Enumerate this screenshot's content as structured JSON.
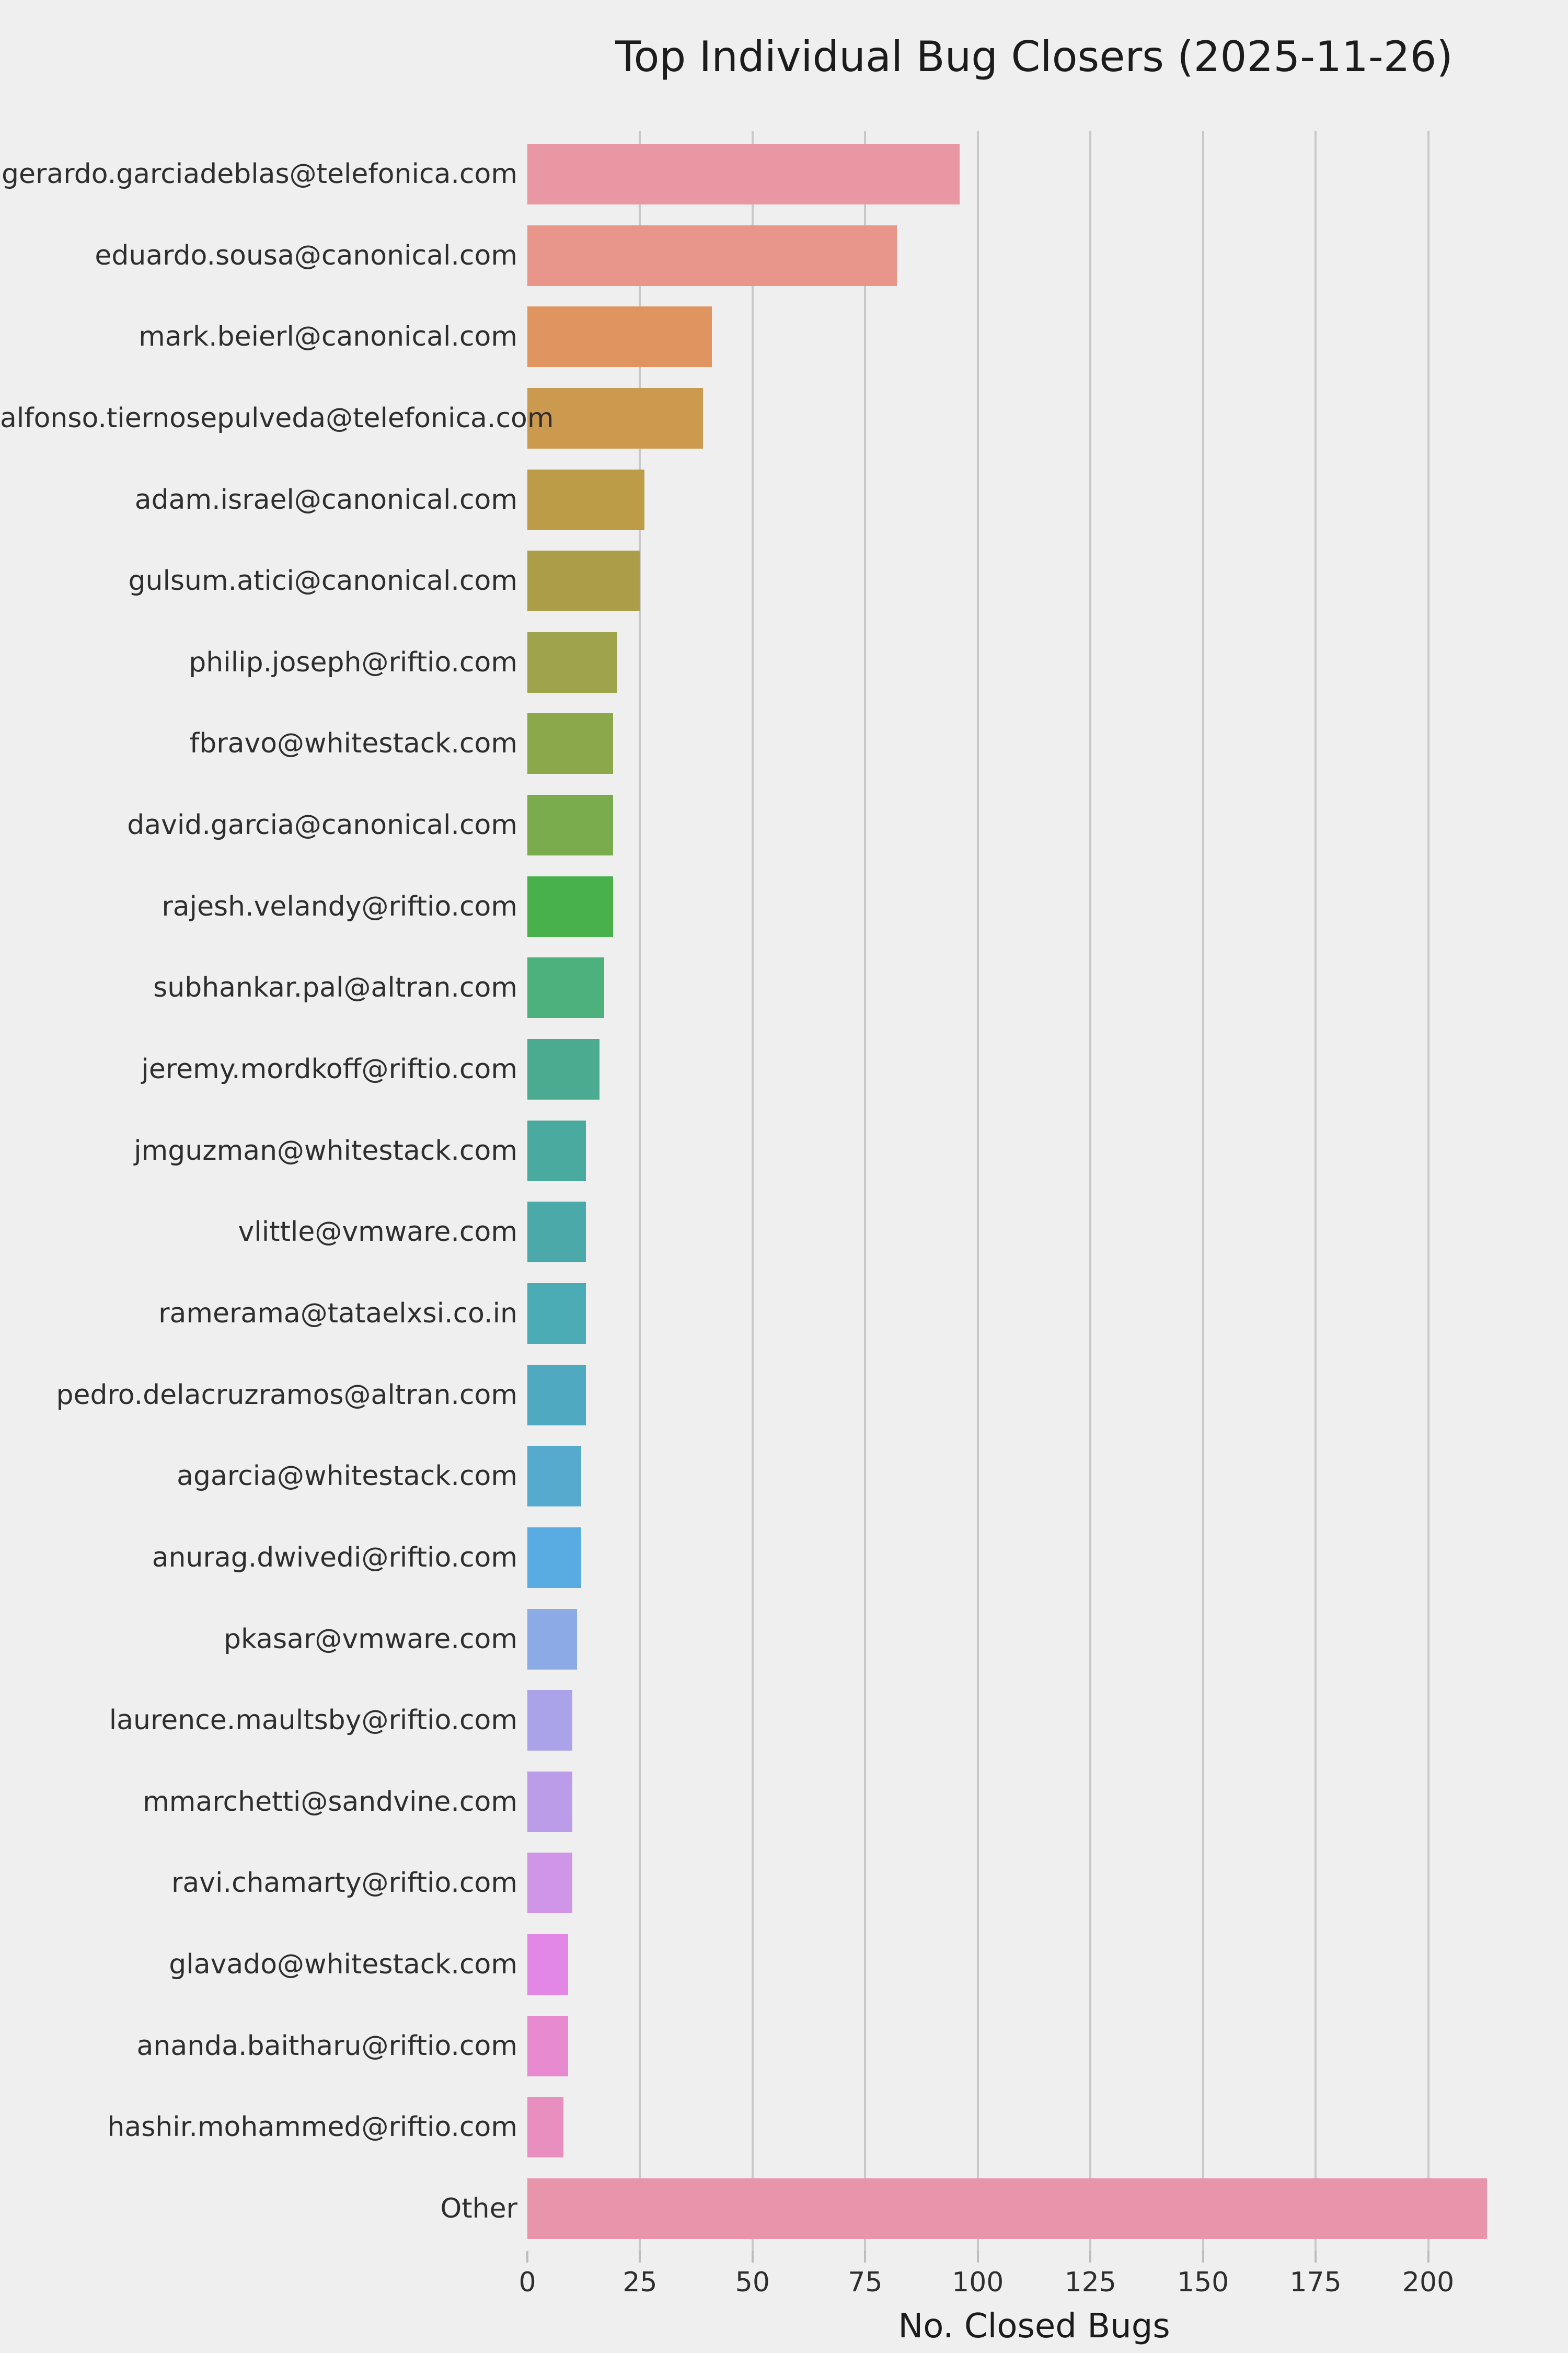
{
  "title": "Top Individual Bug Closers (2025-11-26)",
  "chart_data": {
    "type": "bar",
    "orientation": "horizontal",
    "title": "Top Individual Bug Closers (2025-11-26)",
    "xlabel": "No. Closed Bugs",
    "ylabel": "",
    "xlim": [
      0,
      225
    ],
    "xticks": [
      0,
      25,
      50,
      75,
      100,
      125,
      150,
      175,
      200
    ],
    "grid": "vertical-gridlines-on",
    "legend": "none",
    "background_color": "#efefef",
    "gridline_color": "#c9c9c9",
    "categories": [
      "gerardo.garciadeblas@telefonica.com",
      "eduardo.sousa@canonical.com",
      "mark.beierl@canonical.com",
      "alfonso.tiernosepulveda@telefonica.com",
      "adam.israel@canonical.com",
      "gulsum.atici@canonical.com",
      "philip.joseph@riftio.com",
      "fbravo@whitestack.com",
      "david.garcia@canonical.com",
      "rajesh.velandy@riftio.com",
      "subhankar.pal@altran.com",
      "jeremy.mordkoff@riftio.com",
      "jmguzman@whitestack.com",
      "vlittle@vmware.com",
      "ramerama@tataelxsi.co.in",
      "pedro.delacruzramos@altran.com",
      "agarcia@whitestack.com",
      "anurag.dwivedi@riftio.com",
      "pkasar@vmware.com",
      "laurence.maultsby@riftio.com",
      "mmarchetti@sandvine.com",
      "ravi.chamarty@riftio.com",
      "glavado@whitestack.com",
      "ananda.baitharu@riftio.com",
      "hashir.mohammed@riftio.com",
      "Other"
    ],
    "values": [
      96,
      82,
      41,
      39,
      26,
      25,
      20,
      19,
      19,
      19,
      17,
      16,
      13,
      13,
      13,
      13,
      12,
      12,
      11,
      10,
      10,
      10,
      9,
      9,
      8,
      213
    ],
    "bar_colors": [
      "#e897a3",
      "#e8968c",
      "#e09560",
      "#cc9a4e",
      "#bd9c48",
      "#ac9e48",
      "#9fa34c",
      "#8ba84b",
      "#7aab4c",
      "#48b14c",
      "#4cb17c",
      "#4bab90",
      "#4aaaa0",
      "#4baaa9",
      "#4bacb5",
      "#4fa9c0",
      "#55aacd",
      "#58ace2",
      "#8caae6",
      "#aba3ea",
      "#bb9ce8",
      "#cf96e8",
      "#e287e6",
      "#e78ad0",
      "#e88fc0",
      "#e894ab"
    ]
  }
}
